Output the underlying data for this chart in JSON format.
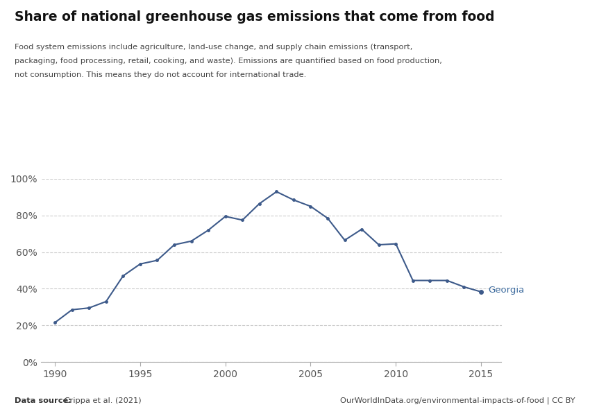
{
  "title": "Share of national greenhouse gas emissions that come from food",
  "subtitle_line1": "Food system emissions include agriculture, land-use change, and supply chain emissions (transport,",
  "subtitle_line2": "packaging, food processing, retail, cooking, and waste). Emissions are quantified based on food production,",
  "subtitle_line3": "not consumption. This means they do not account for international trade.",
  "source_left": "Data source: Crippa et al. (2021)",
  "source_right": "OurWorldInData.org/environmental-impacts-of-food | CC BY",
  "line_color": "#3d5a8a",
  "label_color": "#3d6b9e",
  "background_color": "#ffffff",
  "grid_color": "#cccccc",
  "years": [
    1990,
    1991,
    1992,
    1993,
    1994,
    1995,
    1996,
    1997,
    1998,
    1999,
    2000,
    2001,
    2002,
    2003,
    2004,
    2005,
    2006,
    2007,
    2008,
    2009,
    2010,
    2011,
    2012,
    2013,
    2014,
    2015
  ],
  "values": [
    0.215,
    0.285,
    0.295,
    0.33,
    0.47,
    0.535,
    0.555,
    0.64,
    0.66,
    0.72,
    0.795,
    0.775,
    0.865,
    0.93,
    0.885,
    0.85,
    0.785,
    0.665,
    0.725,
    0.64,
    0.645,
    0.445,
    0.445,
    0.445,
    0.41,
    0.383
  ],
  "ylim": [
    0,
    1.0
  ],
  "xlim": [
    1989.2,
    2016.2
  ],
  "ytick_labels": [
    "0%",
    "20%",
    "40%",
    "60%",
    "80%",
    "100%"
  ],
  "ytick_values": [
    0,
    0.2,
    0.4,
    0.6,
    0.8,
    1.0
  ],
  "xtick_values": [
    1990,
    1995,
    2000,
    2005,
    2010,
    2015
  ],
  "country_label": "Georgia",
  "owid_box_color": "#c0392b",
  "owid_label_color": "#3d6b9e",
  "source_bold": "Data source:",
  "source_normal": " Crippa et al. (2021)"
}
